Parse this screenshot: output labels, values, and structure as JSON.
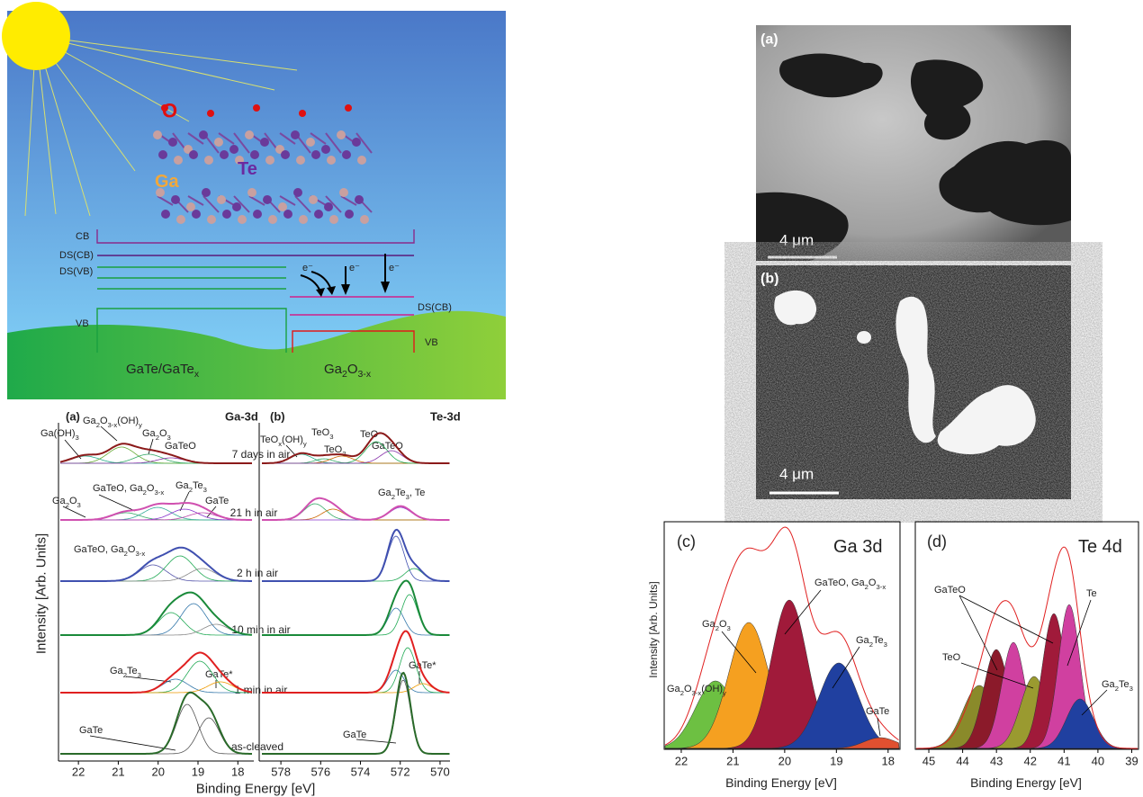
{
  "illustration": {
    "atoms": {
      "oxygen": "O",
      "gallium": "Ga",
      "tellurium": "Te"
    },
    "levels": {
      "cb": "CB",
      "ds_cb": "DS(CB)",
      "ds_vb": "DS(VB)",
      "vb": "VB",
      "ds_cb_oxide": "DS(CB)",
      "vb_oxide": "VB"
    },
    "electrons": [
      "e⁻",
      "e⁻",
      "e⁻"
    ],
    "materials": [
      [
        "GaTe/GaTe",
        "x"
      ],
      [
        "Ga",
        "2",
        "O",
        "3-x"
      ]
    ]
  },
  "xps_series": {
    "y_axis_label": "Intensity [Arb. Units]",
    "x_axis_label": "Binding Energy [eV]",
    "conditions": [
      "7 days in air",
      "21 h in air",
      "2 h in air",
      "10 min in air",
      "1 min in air",
      "as-cleaved"
    ],
    "panels": [
      {
        "label": "(a)",
        "title": "Ga-3d",
        "xlim": [
          22.5,
          17.6
        ],
        "xticks": [
          22,
          21,
          20,
          19,
          18
        ],
        "peak_labels": [
          [
            "Ga(OH)",
            "3"
          ],
          [
            "Ga",
            "2",
            "O",
            "3-x",
            "(OH)",
            "y"
          ],
          [
            "Ga",
            "2",
            "O",
            "3"
          ],
          [
            "GaTeO"
          ],
          [
            "GaTeO, Ga",
            "2",
            "O",
            "3-x"
          ],
          [
            "Ga",
            "2",
            "Te",
            "3"
          ],
          [
            "Ga",
            "2",
            "O",
            "3"
          ],
          [
            "GaTe"
          ],
          [
            "GaTeO, Ga",
            "2",
            "O",
            "3-x"
          ],
          [
            "Ga",
            "2",
            "Te",
            "3"
          ],
          [
            "GaTe*"
          ],
          [
            "GaTe"
          ]
        ]
      },
      {
        "label": "(b)",
        "title": "Te-3d",
        "xlim": [
          579,
          569.5
        ],
        "xticks": [
          578,
          576,
          574,
          572,
          570
        ],
        "peak_labels": [
          [
            "TeO",
            "x",
            "(OH)",
            "y"
          ],
          [
            "TeO",
            "3"
          ],
          [
            "TeO",
            "2"
          ],
          [
            "TeO"
          ],
          [
            "GaTeO"
          ],
          [
            "Ga",
            "2",
            "Te",
            "3",
            ", Te"
          ],
          [
            "GaTe*"
          ],
          [
            "GaTe"
          ]
        ]
      }
    ]
  },
  "micrographs": [
    {
      "label": "(a)",
      "scale_bar": "4 μm"
    },
    {
      "label": "(b)",
      "scale_bar": "4 μm"
    }
  ],
  "fits": {
    "y_axis_label": "Intensity [Arb. Units]",
    "panels": [
      {
        "label": "(c)",
        "title": "Ga 3d",
        "x_axis_label": "Binding Energy [eV]",
        "xlim": [
          22.33,
          17.77
        ],
        "xticks": [
          22,
          21,
          20,
          19,
          18
        ],
        "peak_labels": [
          [
            "Ga",
            "2",
            "O",
            "3"
          ],
          [
            "GaTeO, Ga",
            "2",
            "O",
            "3-x"
          ],
          [
            "Ga",
            "2",
            "O",
            "3-x",
            "(OH)",
            "y"
          ],
          [
            "Ga",
            "2",
            "Te",
            "3"
          ],
          [
            "GaTe"
          ]
        ]
      },
      {
        "label": "(d)",
        "title": "Te 4d",
        "x_axis_label": "Binding Energy [eV]",
        "xlim": [
          45.4,
          38.8
        ],
        "xticks": [
          45,
          44,
          43,
          42,
          41,
          40,
          39
        ],
        "peak_labels": [
          [
            "GaTeO"
          ],
          [
            "Te"
          ],
          [
            "TeO"
          ],
          [
            "Ga",
            "2",
            "Te",
            "3"
          ]
        ]
      }
    ]
  }
}
